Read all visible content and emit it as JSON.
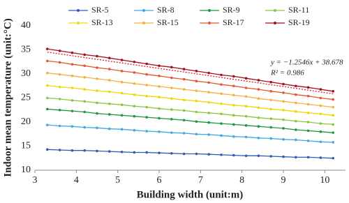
{
  "chart_data": {
    "type": "line",
    "x_label": "Building width (unit:m)",
    "y_label": "Indoor mean temperature  (unit:°C)",
    "x": [
      3.3,
      3.6,
      3.9,
      4.2,
      4.5,
      4.8,
      5.1,
      5.4,
      5.7,
      6.0,
      6.3,
      6.6,
      6.9,
      7.2,
      7.5,
      7.8,
      8.1,
      8.4,
      8.7,
      9.0,
      9.3,
      9.6,
      9.9,
      10.2
    ],
    "series": [
      {
        "name": "SR-5",
        "color": "#2b5cb8",
        "values": [
          14.3,
          14.2,
          14.1,
          14.1,
          14.0,
          13.9,
          13.8,
          13.7,
          13.7,
          13.6,
          13.5,
          13.4,
          13.4,
          13.3,
          13.2,
          13.1,
          13.0,
          13.0,
          12.9,
          12.8,
          12.7,
          12.7,
          12.6,
          12.5
        ]
      },
      {
        "name": "SR-8",
        "color": "#3ea8e0",
        "values": [
          19.4,
          19.2,
          19.1,
          18.9,
          18.8,
          18.6,
          18.5,
          18.3,
          18.1,
          18.0,
          17.8,
          17.7,
          17.5,
          17.4,
          17.2,
          17.0,
          16.9,
          16.7,
          16.6,
          16.4,
          16.3,
          16.1,
          15.9,
          15.8
        ]
      },
      {
        "name": "SR-9",
        "color": "#1a9a3a",
        "values": [
          22.7,
          22.5,
          22.3,
          22.1,
          21.8,
          21.6,
          21.4,
          21.2,
          21.0,
          20.8,
          20.6,
          20.4,
          20.1,
          19.9,
          19.7,
          19.5,
          19.3,
          19.1,
          18.9,
          18.7,
          18.4,
          18.2,
          18.0,
          17.8
        ]
      },
      {
        "name": "SR-11",
        "color": "#8cc63f",
        "values": [
          25.0,
          24.8,
          24.5,
          24.3,
          24.0,
          23.8,
          23.6,
          23.3,
          23.1,
          22.8,
          22.6,
          22.4,
          22.1,
          21.9,
          21.7,
          21.4,
          21.2,
          20.9,
          20.7,
          20.5,
          20.2,
          20.0,
          19.7,
          19.5
        ]
      },
      {
        "name": "SR-13",
        "color": "#f2d600",
        "values": [
          27.6,
          27.3,
          27.1,
          26.8,
          26.5,
          26.3,
          26.0,
          25.7,
          25.4,
          25.2,
          24.9,
          24.6,
          24.4,
          24.1,
          23.8,
          23.5,
          23.3,
          23.0,
          22.7,
          22.5,
          22.2,
          21.9,
          21.7,
          21.4
        ]
      },
      {
        "name": "SR-15",
        "color": "#f5b041",
        "values": [
          30.2,
          29.9,
          29.6,
          29.3,
          29.0,
          28.7,
          28.3,
          28.0,
          27.7,
          27.4,
          27.1,
          26.8,
          26.5,
          26.2,
          25.9,
          25.6,
          25.3,
          24.9,
          24.6,
          24.3,
          24.0,
          23.7,
          23.4,
          23.1
        ]
      },
      {
        "name": "SR-17",
        "color": "#e8552e",
        "values": [
          32.7,
          32.4,
          32.0,
          31.7,
          31.3,
          31.0,
          30.6,
          30.3,
          29.9,
          29.6,
          29.2,
          28.9,
          28.5,
          28.2,
          27.8,
          27.5,
          27.1,
          26.8,
          26.4,
          26.1,
          25.7,
          25.4,
          25.0,
          24.7
        ]
      },
      {
        "name": "SR-19",
        "color": "#a0101e",
        "values": [
          35.2,
          34.8,
          34.4,
          34.0,
          33.7,
          33.3,
          32.9,
          32.5,
          32.1,
          31.7,
          31.4,
          31.0,
          30.6,
          30.2,
          29.8,
          29.5,
          29.1,
          28.7,
          28.3,
          27.9,
          27.5,
          27.2,
          26.8,
          26.4
        ]
      }
    ],
    "trendline": {
      "series": 7,
      "slope": -1.2546,
      "intercept": 38.678,
      "color": "#d62020",
      "equation": "y = −1.2546x + 38.678",
      "r2": "R² = 0.986"
    },
    "xlim": [
      3,
      10.5
    ],
    "xticks": [
      3,
      4,
      5,
      6,
      7,
      8,
      9,
      10
    ],
    "ylim": [
      10,
      40
    ],
    "yticks": [
      10,
      15,
      20,
      25,
      30,
      35,
      40
    ]
  }
}
